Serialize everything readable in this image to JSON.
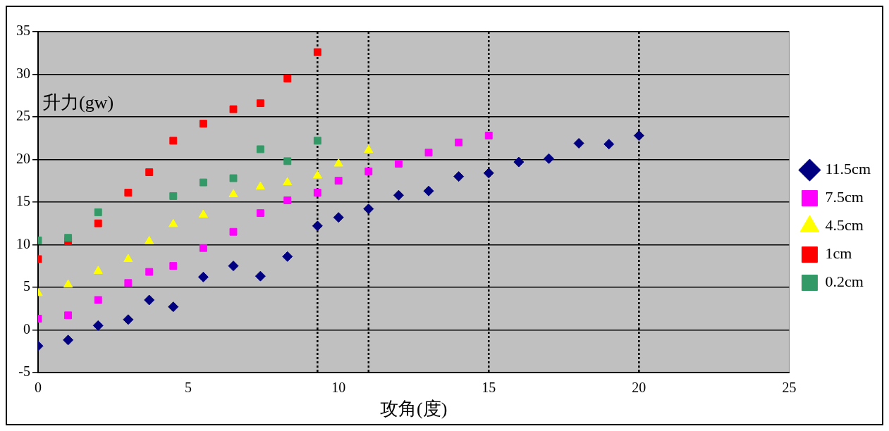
{
  "chart_data": {
    "type": "scatter",
    "xlabel": "攻角(度)",
    "ylabel": "升力(gw)",
    "xlim": [
      0,
      25
    ],
    "xticks": [
      0,
      5,
      10,
      15,
      20,
      25
    ],
    "ylim": [
      -5,
      35
    ],
    "yticks": [
      -5,
      0,
      5,
      10,
      15,
      20,
      25,
      30,
      35
    ],
    "grid": "y",
    "legend": "right",
    "series": [
      {
        "name": "11.5cm",
        "color": "#000080",
        "marker": "diamond",
        "x": [
          0,
          1,
          2,
          3,
          3.7,
          4.5,
          5.5,
          6.5,
          7.4,
          8.3,
          9.3,
          10,
          11,
          12,
          13,
          14,
          15,
          16,
          17,
          18,
          19,
          20
        ],
        "values": [
          -1.9,
          -1.2,
          0.5,
          1.2,
          3.5,
          2.7,
          6.2,
          7.5,
          6.3,
          8.6,
          12.2,
          13.2,
          14.2,
          15.8,
          16.3,
          18.0,
          18.4,
          19.7,
          20.1,
          21.9,
          21.8,
          22.8
        ]
      },
      {
        "name": "7.5cm",
        "color": "#ff00ff",
        "marker": "square",
        "x": [
          0,
          1,
          2,
          3,
          3.7,
          4.5,
          5.5,
          6.5,
          7.4,
          8.3,
          9.3,
          10,
          11,
          12,
          13,
          14,
          15
        ],
        "values": [
          1.3,
          1.7,
          3.5,
          5.5,
          6.8,
          7.5,
          9.6,
          11.5,
          13.7,
          15.2,
          16.1,
          17.5,
          18.6,
          19.5,
          20.8,
          22.0,
          22.8
        ]
      },
      {
        "name": "4.5cm",
        "color": "#ffff00",
        "marker": "triangle",
        "x": [
          0,
          1,
          2,
          3,
          3.7,
          4.5,
          5.5,
          6.5,
          7.4,
          8.3,
          9.3,
          10,
          11
        ],
        "values": [
          4.3,
          5.3,
          6.9,
          8.3,
          10.4,
          12.4,
          13.5,
          15.9,
          16.8,
          17.3,
          18.1,
          19.5,
          21.1
        ]
      },
      {
        "name": "1cm",
        "color": "#ff0000",
        "marker": "square",
        "x": [
          0,
          1,
          2,
          3,
          3.7,
          4.5,
          5.5,
          6.5,
          7.4,
          8.3,
          9.3
        ],
        "values": [
          8.3,
          10.4,
          12.5,
          16.1,
          18.5,
          22.2,
          24.2,
          25.9,
          26.6,
          29.5,
          32.6
        ]
      },
      {
        "name": "0.2cm",
        "color": "#339966",
        "marker": "square",
        "x": [
          0,
          1,
          2,
          4.5,
          5.5,
          6.5,
          7.4,
          8.3,
          9.3
        ],
        "values": [
          10.5,
          10.8,
          13.8,
          15.7,
          17.3,
          17.8,
          21.2,
          19.8,
          22.2
        ]
      }
    ],
    "ref_lines": [
      {
        "axis": "x",
        "value": 9.3,
        "color": "#000000",
        "line_style": "dotted"
      },
      {
        "axis": "x",
        "value": 11,
        "color": "#000000",
        "line_style": "dotted"
      },
      {
        "axis": "x",
        "value": 15,
        "color": "#000000",
        "line_style": "dotted"
      },
      {
        "axis": "x",
        "value": 20,
        "color": "#000000",
        "line_style": "dotted"
      }
    ]
  }
}
